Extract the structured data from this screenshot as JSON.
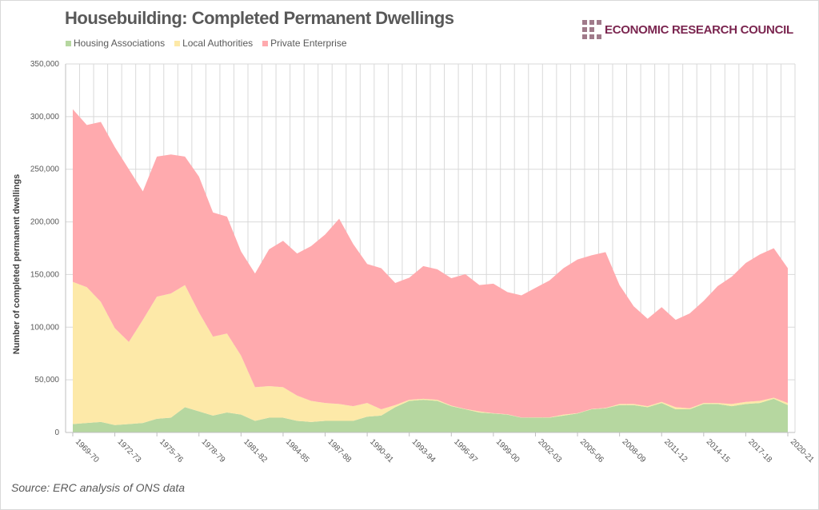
{
  "chart_data": {
    "type": "area",
    "stacked": true,
    "title": "Housebuilding: Completed Permanent Dwellings",
    "ylabel": "Number of completed permanent dwellings",
    "xlabel": "",
    "ylim": [
      0,
      350000
    ],
    "yticks": [
      0,
      50000,
      100000,
      150000,
      200000,
      250000,
      300000,
      350000
    ],
    "ytick_labels": [
      "0",
      "50,000",
      "100,000",
      "150,000",
      "200,000",
      "250,000",
      "300,000",
      "350,000"
    ],
    "grid": true,
    "legend_position": "top-left",
    "categories": [
      "1969-70",
      "1970-71",
      "1971-72",
      "1972-73",
      "1973-74",
      "1974-75",
      "1975-76",
      "1976-77",
      "1977-78",
      "1978-79",
      "1979-80",
      "1980-81",
      "1981-82",
      "1982-83",
      "1983-84",
      "1984-85",
      "1985-86",
      "1986-87",
      "1987-88",
      "1988-89",
      "1989-90",
      "1990-91",
      "1991-92",
      "1992-93",
      "1993-94",
      "1994-95",
      "1995-96",
      "1996-97",
      "1997-98",
      "1998-99",
      "1999-00",
      "2000-01",
      "2001-02",
      "2002-03",
      "2003-04",
      "2004-05",
      "2005-06",
      "2006-07",
      "2007-08",
      "2008-09",
      "2009-10",
      "2010-11",
      "2011-12",
      "2012-13",
      "2013-14",
      "2014-15",
      "2015-16",
      "2016-17",
      "2017-18",
      "2018-19",
      "2019-20",
      "2020-21"
    ],
    "xtick_labels": [
      "1969-70",
      "1972-73",
      "1975-76",
      "1978-79",
      "1981-82",
      "1984-85",
      "1987-88",
      "1990-91",
      "1993-94",
      "1996-97",
      "1999-00",
      "2002-03",
      "2005-06",
      "2008-09",
      "2011-12",
      "2014-15",
      "2017-18",
      "2020-21"
    ],
    "series": [
      {
        "name": "Housing Associations",
        "color": "#b6d7a0",
        "values": [
          8000,
          9000,
          10000,
          7000,
          8000,
          9000,
          13000,
          14000,
          24000,
          20000,
          16000,
          19000,
          17000,
          11000,
          14000,
          14000,
          11000,
          10000,
          11000,
          11000,
          11000,
          15000,
          16000,
          24000,
          30000,
          31000,
          30000,
          25000,
          22000,
          19000,
          18000,
          17000,
          14000,
          14000,
          14000,
          16000,
          18000,
          22000,
          23000,
          26000,
          26000,
          24000,
          28000,
          22000,
          22000,
          27000,
          27000,
          25000,
          27000,
          28000,
          32000,
          26000
        ]
      },
      {
        "name": "Local Authorities",
        "color": "#fde9a8",
        "values": [
          135000,
          129000,
          114000,
          92000,
          78000,
          98000,
          116000,
          118000,
          116000,
          94000,
          75000,
          75000,
          56000,
          32000,
          30000,
          29000,
          24000,
          20000,
          17000,
          16000,
          14000,
          13000,
          6000,
          2000,
          1000,
          1000,
          1000,
          500,
          300,
          1000,
          300,
          300,
          200,
          300,
          300,
          1000,
          300,
          300,
          300,
          1000,
          1000,
          1000,
          1000,
          2000,
          1000,
          1000,
          1000,
          2000,
          2000,
          2000,
          1000,
          2000
        ]
      },
      {
        "name": "Private Enterprise",
        "color": "#ffaaae",
        "values": [
          164000,
          154000,
          171000,
          172000,
          164000,
          122000,
          133000,
          132000,
          122000,
          129000,
          118000,
          111000,
          99000,
          108000,
          130000,
          139000,
          135000,
          147000,
          160000,
          176000,
          154000,
          132000,
          134000,
          116000,
          116000,
          126000,
          124000,
          121000,
          128000,
          120000,
          123000,
          116000,
          116000,
          123000,
          130000,
          139000,
          146000,
          146000,
          148000,
          113000,
          93000,
          83000,
          90000,
          83000,
          90000,
          97000,
          111000,
          121000,
          132000,
          139000,
          142000,
          128000
        ]
      }
    ]
  },
  "logo": {
    "text": "ECONOMIC RESEARCH COUNCIL"
  },
  "source": "Source: ERC analysis of ONS data"
}
